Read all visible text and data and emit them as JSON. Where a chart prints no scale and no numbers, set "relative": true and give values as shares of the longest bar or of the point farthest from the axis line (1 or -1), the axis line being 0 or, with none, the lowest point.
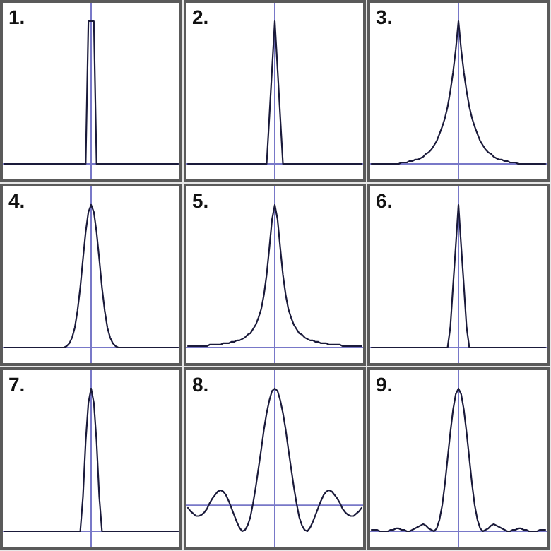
{
  "chart_data": [
    {
      "type": "line",
      "title": "1.",
      "relative": true,
      "categories": [
        null,
        null,
        null,
        null,
        null,
        null,
        null,
        null,
        null,
        null,
        null,
        null,
        null,
        null,
        null,
        null,
        null,
        null,
        null,
        null,
        null,
        null,
        null,
        null,
        null,
        null,
        null,
        null,
        null,
        null,
        null,
        null,
        null,
        null,
        null,
        null,
        null,
        null,
        null,
        null,
        null,
        null,
        null,
        null,
        null,
        null,
        null,
        null,
        null,
        null,
        null,
        null,
        null,
        null,
        null,
        null,
        null,
        null,
        null,
        null,
        null,
        null,
        null,
        null,
        null
      ],
      "series": [
        {
          "color": "#1a1a3a",
          "values": [
            0,
            0,
            0,
            0,
            0,
            0,
            0,
            0,
            0,
            0,
            0,
            0,
            0,
            0,
            0,
            0,
            0,
            0,
            0,
            0,
            0,
            0,
            0,
            0,
            0,
            0,
            0,
            0,
            0,
            0,
            0,
            1,
            1,
            1,
            0,
            0,
            0,
            0,
            0,
            0,
            0,
            0,
            0,
            0,
            0,
            0,
            0,
            0,
            0,
            0,
            0,
            0,
            0,
            0,
            0,
            0,
            0,
            0,
            0,
            0,
            0,
            0,
            0,
            0,
            0
          ]
        }
      ]
    },
    {
      "type": "line",
      "title": "2.",
      "relative": true,
      "categories": [
        null,
        null,
        null,
        null,
        null,
        null,
        null,
        null,
        null,
        null,
        null,
        null,
        null,
        null,
        null,
        null,
        null,
        null,
        null,
        null,
        null,
        null,
        null,
        null,
        null,
        null,
        null,
        null,
        null,
        null,
        null,
        null,
        null,
        null,
        null,
        null,
        null,
        null,
        null,
        null,
        null,
        null,
        null,
        null,
        null,
        null,
        null,
        null,
        null,
        null,
        null,
        null,
        null,
        null,
        null,
        null,
        null,
        null,
        null,
        null,
        null,
        null,
        null,
        null,
        null
      ],
      "series": [
        {
          "color": "#1a1a3a",
          "values": [
            0,
            0,
            0,
            0,
            0,
            0,
            0,
            0,
            0,
            0,
            0,
            0,
            0,
            0,
            0,
            0,
            0,
            0,
            0,
            0,
            0,
            0,
            0,
            0,
            0,
            0,
            0,
            0,
            0,
            0,
            0.33,
            0.67,
            1,
            0.67,
            0.33,
            0,
            0,
            0,
            0,
            0,
            0,
            0,
            0,
            0,
            0,
            0,
            0,
            0,
            0,
            0,
            0,
            0,
            0,
            0,
            0,
            0,
            0,
            0,
            0,
            0,
            0,
            0,
            0,
            0,
            0
          ]
        }
      ]
    },
    {
      "type": "line",
      "title": "3.",
      "relative": true,
      "categories": [
        null,
        null,
        null,
        null,
        null,
        null,
        null,
        null,
        null,
        null,
        null,
        null,
        null,
        null,
        null,
        null,
        null,
        null,
        null,
        null,
        null,
        null,
        null,
        null,
        null,
        null,
        null,
        null,
        null,
        null,
        null,
        null,
        null,
        null,
        null,
        null,
        null,
        null,
        null,
        null,
        null,
        null,
        null,
        null,
        null,
        null,
        null,
        null,
        null,
        null,
        null,
        null,
        null,
        null,
        null,
        null,
        null,
        null,
        null,
        null,
        null,
        null,
        null,
        null,
        null
      ],
      "series": [
        {
          "color": "#1a1a3a",
          "values": [
            0,
            0,
            0,
            0,
            0,
            0,
            0,
            0,
            0,
            0,
            0,
            0.01,
            0.01,
            0.01,
            0.02,
            0.02,
            0.03,
            0.03,
            0.04,
            0.05,
            0.07,
            0.08,
            0.1,
            0.13,
            0.16,
            0.21,
            0.26,
            0.32,
            0.4,
            0.51,
            0.64,
            0.8,
            1,
            0.8,
            0.64,
            0.51,
            0.4,
            0.32,
            0.26,
            0.21,
            0.16,
            0.13,
            0.1,
            0.08,
            0.07,
            0.05,
            0.04,
            0.03,
            0.03,
            0.02,
            0.02,
            0.01,
            0.01,
            0.01,
            0,
            0,
            0,
            0,
            0,
            0,
            0,
            0,
            0,
            0,
            0
          ]
        }
      ]
    },
    {
      "type": "line",
      "title": "4.",
      "relative": true,
      "categories": [
        null,
        null,
        null,
        null,
        null,
        null,
        null,
        null,
        null,
        null,
        null,
        null,
        null,
        null,
        null,
        null,
        null,
        null,
        null,
        null,
        null,
        null,
        null,
        null,
        null,
        null,
        null,
        null,
        null,
        null,
        null,
        null,
        null,
        null,
        null,
        null,
        null,
        null,
        null,
        null,
        null,
        null,
        null,
        null,
        null,
        null,
        null,
        null,
        null,
        null,
        null,
        null,
        null,
        null,
        null,
        null,
        null,
        null,
        null,
        null,
        null,
        null,
        null,
        null,
        null
      ],
      "series": [
        {
          "color": "#1a1a3a",
          "values": [
            0,
            0,
            0,
            0,
            0,
            0,
            0,
            0,
            0,
            0,
            0,
            0,
            0,
            0,
            0,
            0,
            0,
            0,
            0,
            0,
            0,
            0,
            0,
            0.01,
            0.03,
            0.07,
            0.14,
            0.26,
            0.42,
            0.62,
            0.81,
            0.95,
            1,
            0.95,
            0.81,
            0.62,
            0.42,
            0.26,
            0.14,
            0.07,
            0.03,
            0.01,
            0,
            0,
            0,
            0,
            0,
            0,
            0,
            0,
            0,
            0,
            0,
            0,
            0,
            0,
            0,
            0,
            0,
            0,
            0,
            0,
            0,
            0,
            0
          ]
        }
      ]
    },
    {
      "type": "line",
      "title": "5.",
      "relative": true,
      "categories": [
        null,
        null,
        null,
        null,
        null,
        null,
        null,
        null,
        null,
        null,
        null,
        null,
        null,
        null,
        null,
        null,
        null,
        null,
        null,
        null,
        null,
        null,
        null,
        null,
        null,
        null,
        null,
        null,
        null,
        null,
        null,
        null,
        null,
        null,
        null,
        null,
        null,
        null,
        null,
        null,
        null,
        null,
        null,
        null,
        null,
        null,
        null,
        null,
        null,
        null,
        null,
        null,
        null,
        null,
        null,
        null,
        null,
        null,
        null,
        null,
        null,
        null,
        null,
        null,
        null
      ],
      "series": [
        {
          "color": "#1a1a3a",
          "values": [
            0.01,
            0.01,
            0.01,
            0.01,
            0.01,
            0.01,
            0.01,
            0.01,
            0.02,
            0.02,
            0.02,
            0.02,
            0.02,
            0.03,
            0.03,
            0.03,
            0.04,
            0.04,
            0.05,
            0.05,
            0.06,
            0.07,
            0.09,
            0.1,
            0.13,
            0.16,
            0.21,
            0.27,
            0.37,
            0.51,
            0.7,
            0.9,
            1,
            0.9,
            0.7,
            0.51,
            0.37,
            0.27,
            0.21,
            0.16,
            0.13,
            0.1,
            0.09,
            0.07,
            0.06,
            0.05,
            0.05,
            0.04,
            0.04,
            0.03,
            0.03,
            0.03,
            0.02,
            0.02,
            0.02,
            0.02,
            0.02,
            0.01,
            0.01,
            0.01,
            0.01,
            0.01,
            0.01,
            0.01,
            0.01
          ]
        }
      ]
    },
    {
      "type": "line",
      "title": "6.",
      "relative": true,
      "categories": [
        null,
        null,
        null,
        null,
        null,
        null,
        null,
        null,
        null,
        null,
        null,
        null,
        null,
        null,
        null,
        null,
        null,
        null,
        null,
        null,
        null,
        null,
        null,
        null,
        null,
        null,
        null,
        null,
        null,
        null,
        null,
        null,
        null,
        null,
        null,
        null,
        null,
        null,
        null,
        null,
        null,
        null,
        null,
        null,
        null,
        null,
        null,
        null,
        null,
        null,
        null,
        null,
        null,
        null,
        null,
        null,
        null,
        null,
        null,
        null,
        null,
        null,
        null,
        null,
        null
      ],
      "series": [
        {
          "color": "#1a1a3a",
          "values": [
            0,
            0,
            0,
            0,
            0,
            0,
            0,
            0,
            0,
            0,
            0,
            0,
            0,
            0,
            0,
            0,
            0,
            0,
            0,
            0,
            0,
            0,
            0,
            0,
            0,
            0,
            0,
            0,
            0,
            0.14,
            0.43,
            0.71,
            1,
            0.71,
            0.43,
            0.14,
            0,
            0,
            0,
            0,
            0,
            0,
            0,
            0,
            0,
            0,
            0,
            0,
            0,
            0,
            0,
            0,
            0,
            0,
            0,
            0,
            0,
            0,
            0,
            0,
            0,
            0,
            0,
            0,
            0
          ]
        }
      ]
    },
    {
      "type": "line",
      "title": "7.",
      "relative": true,
      "categories": [
        null,
        null,
        null,
        null,
        null,
        null,
        null,
        null,
        null,
        null,
        null,
        null,
        null,
        null,
        null,
        null,
        null,
        null,
        null,
        null,
        null,
        null,
        null,
        null,
        null,
        null,
        null,
        null,
        null,
        null,
        null,
        null,
        null,
        null,
        null,
        null,
        null,
        null,
        null,
        null,
        null,
        null,
        null,
        null,
        null,
        null,
        null,
        null,
        null,
        null,
        null,
        null,
        null,
        null,
        null,
        null,
        null,
        null,
        null,
        null,
        null,
        null,
        null,
        null,
        null
      ],
      "series": [
        {
          "color": "#1a1a3a",
          "values": [
            0,
            0,
            0,
            0,
            0,
            0,
            0,
            0,
            0,
            0,
            0,
            0,
            0,
            0,
            0,
            0,
            0,
            0,
            0,
            0,
            0,
            0,
            0,
            0,
            0,
            0,
            0,
            0,
            0,
            0.24,
            0.63,
            0.9,
            1,
            0.9,
            0.63,
            0.24,
            0,
            0,
            0,
            0,
            0,
            0,
            0,
            0,
            0,
            0,
            0,
            0,
            0,
            0,
            0,
            0,
            0,
            0,
            0,
            0,
            0,
            0,
            0,
            0,
            0,
            0,
            0,
            0,
            0
          ]
        }
      ]
    },
    {
      "type": "line",
      "title": "8.",
      "relative": true,
      "ref_lines": [
        {
          "axis": "y",
          "value": 0,
          "color": "#7878c8"
        }
      ],
      "categories": [
        null,
        null,
        null,
        null,
        null,
        null,
        null,
        null,
        null,
        null,
        null,
        null,
        null,
        null,
        null,
        null,
        null,
        null,
        null,
        null,
        null,
        null,
        null,
        null,
        null,
        null,
        null,
        null,
        null,
        null,
        null,
        null,
        null,
        null,
        null,
        null,
        null,
        null,
        null,
        null,
        null,
        null,
        null,
        null,
        null,
        null,
        null,
        null,
        null,
        null,
        null,
        null,
        null,
        null,
        null,
        null,
        null,
        null,
        null,
        null,
        null,
        null,
        null,
        null,
        null
      ],
      "series": [
        {
          "color": "#1a1a3a",
          "values": [
            -0.02,
            -0.05,
            -0.07,
            -0.09,
            -0.09,
            -0.08,
            -0.06,
            -0.03,
            0.02,
            0.06,
            0.09,
            0.12,
            0.13,
            0.12,
            0.09,
            0.04,
            -0.02,
            -0.08,
            -0.14,
            -0.19,
            -0.22,
            -0.21,
            -0.17,
            -0.1,
            0.02,
            0.16,
            0.32,
            0.48,
            0.65,
            0.79,
            0.9,
            0.98,
            1,
            0.98,
            0.9,
            0.79,
            0.65,
            0.48,
            0.32,
            0.16,
            0.02,
            -0.1,
            -0.17,
            -0.21,
            -0.22,
            -0.19,
            -0.14,
            -0.08,
            -0.02,
            0.04,
            0.09,
            0.12,
            0.13,
            0.12,
            0.09,
            0.06,
            0.02,
            -0.03,
            -0.06,
            -0.08,
            -0.09,
            -0.09,
            -0.07,
            -0.05,
            -0.02
          ]
        }
      ]
    },
    {
      "type": "line",
      "title": "9.",
      "relative": true,
      "categories": [
        null,
        null,
        null,
        null,
        null,
        null,
        null,
        null,
        null,
        null,
        null,
        null,
        null,
        null,
        null,
        null,
        null,
        null,
        null,
        null,
        null,
        null,
        null,
        null,
        null,
        null,
        null,
        null,
        null,
        null,
        null,
        null,
        null,
        null,
        null,
        null,
        null,
        null,
        null,
        null,
        null,
        null,
        null,
        null,
        null,
        null,
        null,
        null,
        null,
        null,
        null,
        null,
        null,
        null,
        null,
        null,
        null,
        null,
        null,
        null,
        null,
        null,
        null,
        null,
        null
      ],
      "series": [
        {
          "color": "#1a1a3a",
          "values": [
            0.01,
            0.01,
            0.01,
            0,
            0,
            0,
            0,
            0.01,
            0.01,
            0.02,
            0.02,
            0.01,
            0.01,
            0,
            0,
            0.01,
            0.02,
            0.03,
            0.04,
            0.05,
            0.04,
            0.02,
            0.01,
            0,
            0.02,
            0.08,
            0.18,
            0.33,
            0.51,
            0.69,
            0.85,
            0.96,
            1,
            0.96,
            0.85,
            0.69,
            0.51,
            0.33,
            0.18,
            0.08,
            0.02,
            0,
            0.01,
            0.02,
            0.04,
            0.05,
            0.04,
            0.03,
            0.02,
            0.01,
            0,
            0,
            0.01,
            0.01,
            0.02,
            0.02,
            0.01,
            0.01,
            0,
            0,
            0,
            0,
            0.01,
            0.01,
            0.01
          ]
        }
      ]
    }
  ]
}
